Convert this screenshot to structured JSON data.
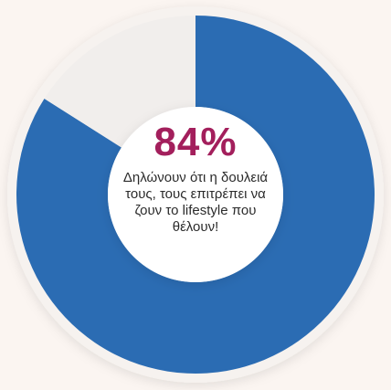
{
  "chart_data": {
    "type": "pie",
    "categories": [
      "",
      ""
    ],
    "values": [
      84,
      16
    ],
    "title": "",
    "colors": [
      "#2b6cb3",
      "#f1eeec"
    ]
  },
  "center": {
    "value_label": "84%",
    "caption": "Δηλώνουν ότι η δουλειά τους, τους επιτρέπει να ζουν το lifestyle που θέλουν!"
  },
  "colors": {
    "background": "#fbf5f1",
    "accent": "#a31f5c",
    "series": "#2b6cb3",
    "remainder": "#f1eeec"
  }
}
